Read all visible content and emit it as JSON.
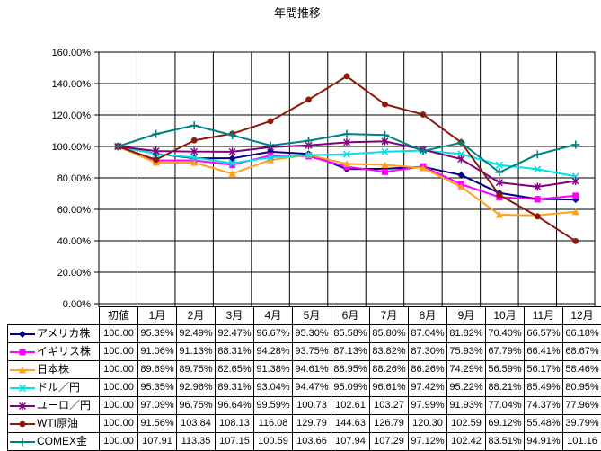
{
  "chart_data": {
    "type": "line",
    "title": "年間推移",
    "categories": [
      "初値",
      "1月",
      "2月",
      "3月",
      "4月",
      "5月",
      "6月",
      "7月",
      "8月",
      "9月",
      "10月",
      "11月",
      "12月"
    ],
    "xlabel": "",
    "ylabel": "",
    "ylim": [
      0,
      160
    ],
    "y_tick_step": 20,
    "y_tick_labels": [
      "0.00%",
      "20.00%",
      "40.00%",
      "60.00%",
      "80.00%",
      "100.00%",
      "120.00%",
      "140.00%",
      "160.00%"
    ],
    "grid": true,
    "legend_position": "attached-data-table-left-column",
    "series": [
      {
        "name": "アメリカ株",
        "color": "#000080",
        "marker": "diamond",
        "values": [
          100.0,
          95.39,
          92.49,
          92.47,
          96.67,
          95.3,
          85.58,
          85.8,
          87.04,
          81.82,
          70.4,
          66.57,
          66.18
        ],
        "display": [
          "100.00",
          "95.39%",
          "92.49%",
          "92.47%",
          "96.67%",
          "95.30%",
          "85.58%",
          "85.80%",
          "87.04%",
          "81.82%",
          "70.40%",
          "66.57%",
          "66.18%"
        ]
      },
      {
        "name": "イギリス株",
        "color": "#FF00FF",
        "marker": "square",
        "values": [
          100.0,
          91.06,
          91.13,
          88.31,
          94.28,
          93.75,
          87.13,
          83.82,
          87.3,
          75.93,
          67.79,
          66.41,
          68.67
        ],
        "display": [
          "100.00",
          "91.06%",
          "91.13%",
          "88.31%",
          "94.28%",
          "93.75%",
          "87.13%",
          "83.82%",
          "87.30%",
          "75.93%",
          "67.79%",
          "66.41%",
          "68.67%"
        ]
      },
      {
        "name": "日本株",
        "color": "#FFA01E",
        "marker": "triangle",
        "values": [
          100.0,
          89.69,
          89.75,
          82.65,
          91.38,
          94.61,
          88.95,
          88.26,
          86.26,
          74.29,
          56.59,
          56.17,
          58.46
        ],
        "display": [
          "100.00",
          "89.69%",
          "89.75%",
          "82.65%",
          "91.38%",
          "94.61%",
          "88.95%",
          "88.26%",
          "86.26%",
          "74.29%",
          "56.59%",
          "56.17%",
          "58.46%"
        ]
      },
      {
        "name": "ドル／円",
        "color": "#00E0E5",
        "marker": "x",
        "values": [
          100.0,
          95.35,
          92.96,
          89.31,
          93.04,
          94.47,
          95.09,
          96.61,
          97.42,
          95.22,
          88.21,
          85.49,
          80.95
        ],
        "display": [
          "100.00",
          "95.35%",
          "92.96%",
          "89.31%",
          "93.04%",
          "94.47%",
          "95.09%",
          "96.61%",
          "97.42%",
          "95.22%",
          "88.21%",
          "85.49%",
          "80.95%"
        ]
      },
      {
        "name": "ユーロ／円",
        "color": "#800080",
        "marker": "star",
        "values": [
          100.0,
          97.09,
          96.75,
          96.64,
          99.59,
          100.73,
          102.61,
          103.27,
          97.99,
          91.93,
          77.04,
          74.37,
          77.96
        ],
        "display": [
          "100.00",
          "97.09%",
          "96.75%",
          "96.64%",
          "99.59%",
          "100.73",
          "102.61",
          "103.27",
          "97.99%",
          "91.93%",
          "77.04%",
          "74.37%",
          "77.96%"
        ]
      },
      {
        "name": "WTI原油",
        "color": "#8C1A0B",
        "marker": "circle",
        "values": [
          100.0,
          91.56,
          103.84,
          108.13,
          116.08,
          129.79,
          144.63,
          126.79,
          120.3,
          102.59,
          69.12,
          55.48,
          39.79
        ],
        "display": [
          "100.00",
          "91.56%",
          "103.84",
          "108.13",
          "116.08",
          "129.79",
          "144.63",
          "126.79",
          "120.30",
          "102.59",
          "69.12%",
          "55.48%",
          "39.79%"
        ]
      },
      {
        "name": "COMEX金",
        "color": "#008080",
        "marker": "plus",
        "values": [
          100.0,
          107.91,
          113.35,
          107.15,
          100.59,
          103.66,
          107.94,
          107.29,
          97.12,
          102.42,
          83.51,
          94.91,
          101.16
        ],
        "display": [
          "100.00",
          "107.91",
          "113.35",
          "107.15",
          "100.59",
          "103.66",
          "107.94",
          "107.29",
          "97.12%",
          "102.42",
          "83.51%",
          "94.91%",
          "101.16"
        ]
      }
    ]
  }
}
